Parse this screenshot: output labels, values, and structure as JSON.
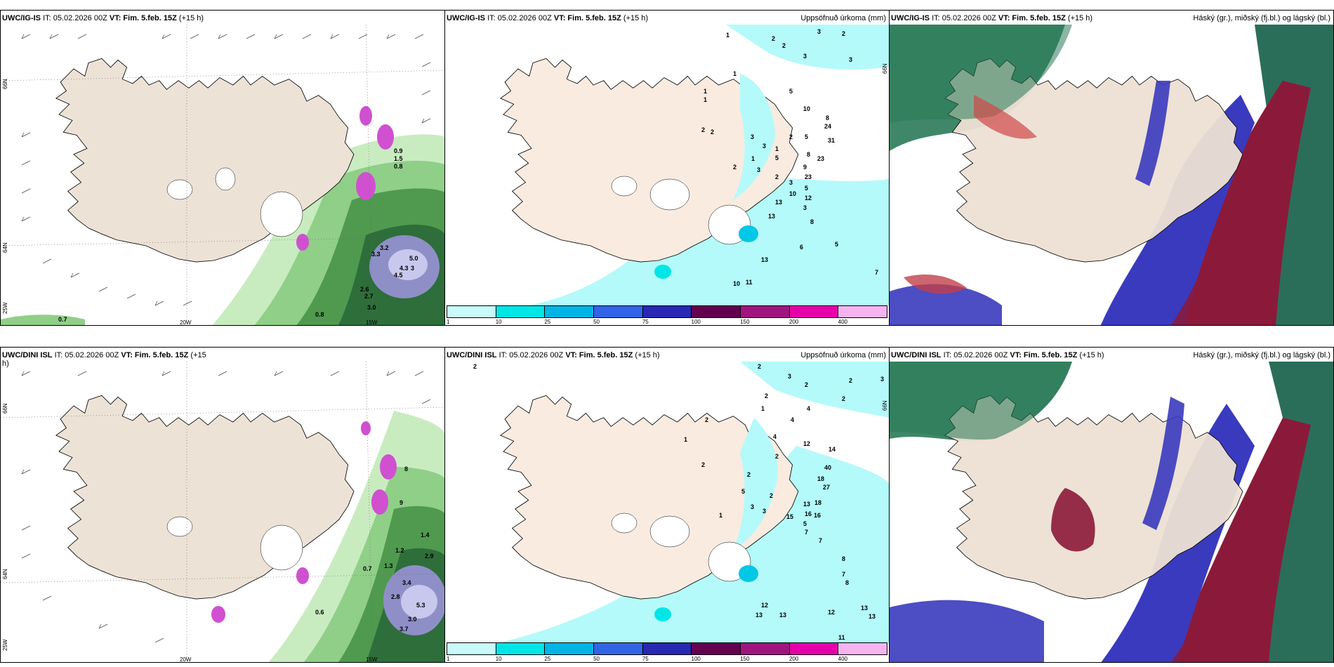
{
  "panels": {
    "tl": {
      "model": "UWC/IG-IS",
      "issue": "IT: 05.02.2026 00Z",
      "valid_label": "VT:",
      "valid": "Fim. 5.feb. 15Z",
      "lead": "(+15 h)",
      "labels": [
        "0.9",
        "1.5",
        "0.8",
        "3.2",
        "3.3",
        "5.0",
        "4.5",
        "4.3",
        "3",
        "2.6",
        "2.7",
        "3.0",
        "0.8",
        "0.7"
      ]
    },
    "tm": {
      "model": "UWC/IG-IS",
      "issue": "IT: 05.02.2026 00Z",
      "valid_label": "VT:",
      "valid": "Fim. 5.feb. 15Z",
      "lead": "(+15 h)",
      "title": "Uppsöfnuð úrkoma (mm)",
      "labels": [
        "1",
        "2",
        "3",
        "2",
        "1",
        "3",
        "2",
        "5",
        "3",
        "1",
        "1",
        "10",
        "8",
        "24",
        "2",
        "2",
        "3",
        "2",
        "5",
        "3",
        "1",
        "8",
        "31",
        "5",
        "23",
        "2",
        "1",
        "3",
        "9",
        "2",
        "23",
        "3",
        "5",
        "12",
        "13",
        "10",
        "3",
        "13",
        "8",
        "6",
        "5",
        "13",
        "10",
        "11",
        "7"
      ]
    },
    "tr": {
      "model": "UWC/IG-IS",
      "issue": "IT: 05.02.2026 00Z",
      "valid_label": "VT:",
      "valid": "Fim. 5.feb. 15Z",
      "lead": "(+15 h)",
      "title": "Háský (gr.), miðský (fj.bl.) og lágský (bl.)"
    },
    "bl": {
      "model": "UWC/DINI ISL",
      "issue": "IT: 05.02.2026 00Z",
      "valid_label": "VT:",
      "valid": "Fim. 5.feb. 15Z",
      "lead": "(+15",
      "lead2": "h)",
      "labels": [
        "8",
        "9",
        "1.2",
        "1.4",
        "2.9",
        "0.7",
        "1.3",
        "3.4",
        "2.8",
        "5.3",
        "3.0",
        "3.7",
        "0.6"
      ]
    },
    "bm": {
      "model": "UWC/DINI ISL",
      "issue": "IT: 05.02.2026 00Z",
      "valid_label": "VT:",
      "valid": "Fim. 5.feb. 15Z",
      "lead": "(+15 h)",
      "title": "Uppsöfnuð úrkoma (mm)",
      "labels": [
        "2",
        "2",
        "3",
        "2",
        "3",
        "2",
        "2",
        "1",
        "4",
        "2",
        "4",
        "2",
        "1",
        "4",
        "12",
        "14",
        "2",
        "2",
        "40",
        "2",
        "5",
        "2",
        "18",
        "27",
        "1",
        "3",
        "13",
        "18",
        "16",
        "3",
        "15",
        "16",
        "7",
        "5",
        "7",
        "8",
        "7",
        "8",
        "12",
        "13",
        "13",
        "12",
        "13",
        "13",
        "11"
      ]
    },
    "br": {
      "model": "UWC/DINI ISL",
      "issue": "IT: 05.02.2026 00Z",
      "valid_label": "VT:",
      "valid": "Fim. 5.feb. 15Z",
      "lead": "(+15 h)",
      "title": "Háský (gr.), miðský (fj.bl.) og lágský (bl.)"
    }
  },
  "axes": {
    "lat66": "66N",
    "lat64": "64N",
    "lon25": "25W",
    "lon20": "20W",
    "lon15": "15W"
  },
  "colorbar": {
    "ticks": [
      "1",
      "10",
      "25",
      "50",
      "75",
      "100",
      "150",
      "200",
      "400"
    ],
    "colors": [
      "#c8fafa",
      "#00e6e6",
      "#00b4e6",
      "#3264e6",
      "#2828b4",
      "#640050",
      "#a0147f",
      "#e600aa",
      "#f5b4f0"
    ]
  },
  "palette": {
    "land": "#f5e6d8",
    "land_alt": "#ede2d6",
    "sea": "#ffffff",
    "high_cloud": "#2a7a58",
    "mid_cloud": "#8b1a3a",
    "low_cloud": "#3a3abe",
    "precip_light": "#b4fafa"
  }
}
